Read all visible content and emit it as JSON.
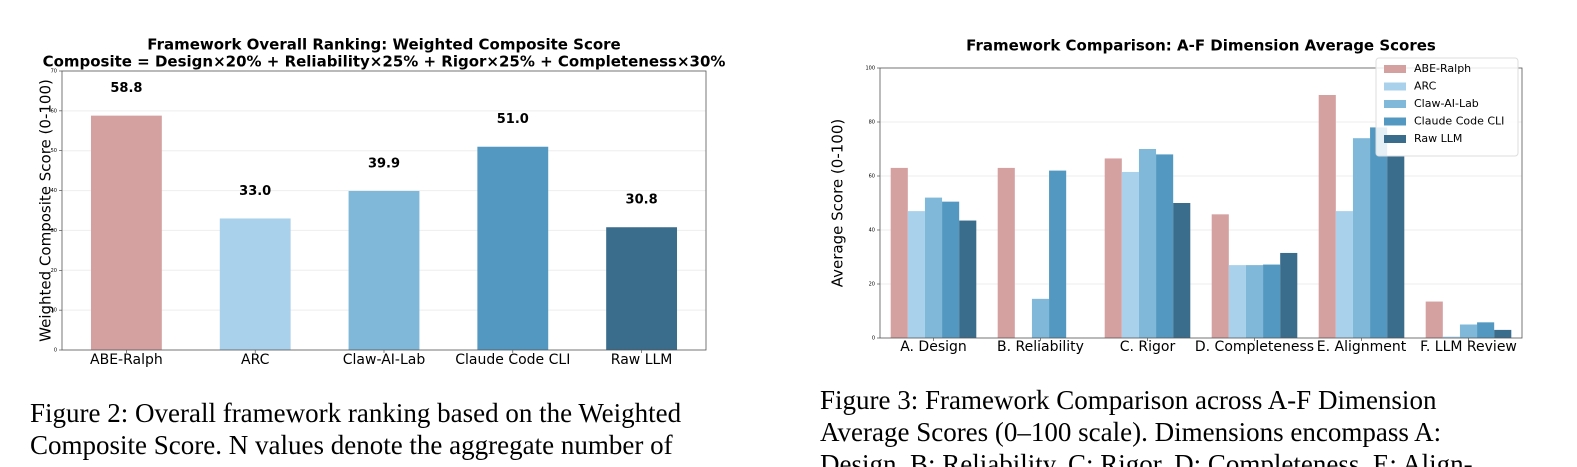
{
  "chart_data": [
    {
      "type": "bar",
      "title": "Framework Overall Ranking: Weighted Composite Score",
      "subtitle": "Composite = Design×20% + Reliability×25% + Rigor×25% + Completeness×30%",
      "ylabel": "Weighted Composite Score (0-100)",
      "categories": [
        "ABE-Ralph",
        "ARC",
        "Claw-AI-Lab",
        "Claude Code CLI",
        "Raw LLM"
      ],
      "values": [
        58.8,
        33.0,
        39.9,
        51.0,
        30.8
      ],
      "value_labels": [
        "58.8",
        "33.0",
        "39.9",
        "51.0",
        "30.8"
      ],
      "colors": [
        "#d4a0a0",
        "#a9d1eb",
        "#7fb8d8",
        "#5398c1",
        "#3a6c8c"
      ],
      "ylim": [
        0,
        70
      ],
      "yticks": [
        0,
        10,
        20,
        30,
        40,
        50,
        60,
        70
      ],
      "grid": true
    },
    {
      "type": "grouped_bar",
      "title": "Framework Comparison: A-F Dimension Average Scores",
      "ylabel": "Average Score (0-100)",
      "categories": [
        "A. Design",
        "B. Reliability",
        "C. Rigor",
        "D. Completeness",
        "E. Alignment",
        "F. LLM Review"
      ],
      "series": [
        {
          "name": "ABE-Ralph",
          "color": "#d4a0a0",
          "values": [
            63,
            63,
            66.5,
            45.8,
            90,
            13.5
          ]
        },
        {
          "name": "ARC",
          "color": "#a9d1eb",
          "values": [
            47,
            0,
            61.5,
            27,
            47,
            0.5
          ]
        },
        {
          "name": "Claw-AI-Lab",
          "color": "#7fb8d8",
          "values": [
            52,
            14.5,
            70,
            27,
            74,
            5
          ]
        },
        {
          "name": "Claude Code CLI",
          "color": "#5398c1",
          "values": [
            50.5,
            62,
            68,
            27.2,
            78,
            5.8
          ]
        },
        {
          "name": "Raw LLM",
          "color": "#3a6c8c",
          "values": [
            43.5,
            0,
            50,
            31.5,
            67.5,
            3
          ]
        }
      ],
      "ylim": [
        0,
        100
      ],
      "yticks": [
        0,
        20,
        40,
        60,
        80,
        100
      ],
      "grid": true,
      "legend": "upper right"
    }
  ],
  "captions": [
    [
      "Figure 2: Overall framework ranking based on the Weighted",
      "Composite Score. N values denote the aggregate number of"
    ],
    [
      "Figure 3: Framework Comparison across A-F Dimension",
      "Average Scores (0–100 scale). Dimensions encompass A:",
      "Design, B: Reliability, C: Rigor, D: Completeness, E: Align-"
    ]
  ]
}
